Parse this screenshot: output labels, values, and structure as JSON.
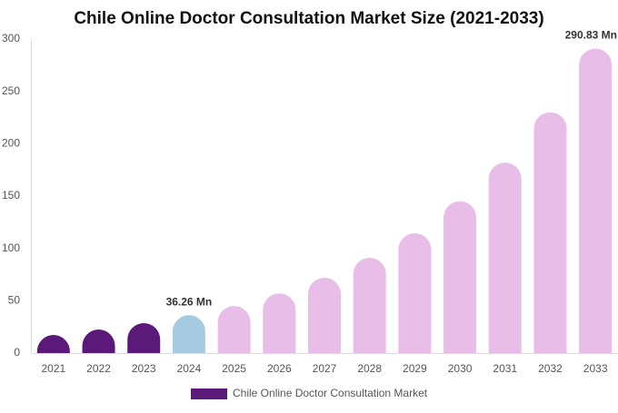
{
  "chart_data": {
    "type": "bar",
    "title": "Chile Online Doctor Consultation Market Size (2021-2033)",
    "categories": [
      "2021",
      "2022",
      "2023",
      "2024",
      "2025",
      "2026",
      "2027",
      "2028",
      "2029",
      "2030",
      "2031",
      "2032",
      "2033"
    ],
    "series": [
      {
        "name": "Chile Online Doctor Consultation Market",
        "color": "#5b1a7a",
        "values": [
          17.3,
          22.5,
          28.6,
          36.26,
          45,
          57,
          72,
          91,
          114.5,
          145,
          182,
          230,
          290.83
        ],
        "value_labels": [
          null,
          null,
          null,
          "36.26 Mn",
          null,
          null,
          null,
          null,
          null,
          null,
          null,
          null,
          "290.83 Mn"
        ],
        "colors": [
          "#5b1a7a",
          "#5b1a7a",
          "#5b1a7a",
          "#a6cbe0",
          "#e8bde8",
          "#e8bde8",
          "#e8bde8",
          "#e8bde8",
          "#e8bde8",
          "#e8bde8",
          "#e8bde8",
          "#e8bde8",
          "#e8bde8"
        ]
      }
    ],
    "ylim": [
      0,
      300
    ],
    "yticks": [
      0,
      50,
      100,
      150,
      200,
      250,
      300
    ],
    "grid": false
  }
}
